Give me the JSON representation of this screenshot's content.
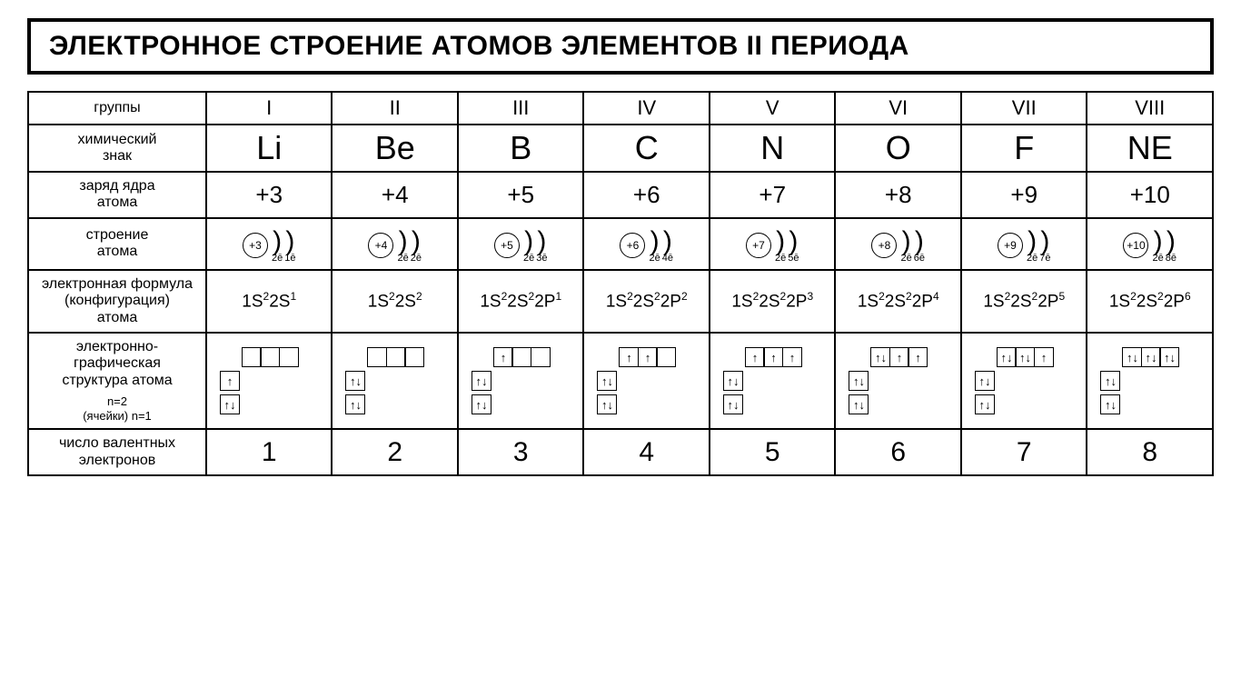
{
  "title": "ЭЛЕКТРОННОЕ СТРОЕНИЕ АТОМОВ ЭЛЕМЕНТОВ II ПЕРИОДА",
  "row_headers": {
    "groups": "группы",
    "symbol": "химический\nзнак",
    "charge": "заряд ядра\nатома",
    "structure": "строение\nатома",
    "config": "электронная формула\n(конфигурация)\nатома",
    "orbital": "электронно-\nграфическая\nструктура атома",
    "orbital_n": "n=2\n(ячейки) n=1",
    "valence": "число валентных\nэлектронов"
  },
  "groups": [
    "I",
    "II",
    "III",
    "IV",
    "V",
    "VI",
    "VII",
    "VIII"
  ],
  "elements": [
    {
      "symbol": "Li",
      "charge": "+3",
      "nucleus": "+3",
      "shells": [
        "2ē",
        "1ē"
      ],
      "config": [
        [
          "1S",
          "2"
        ],
        [
          "2S",
          "1"
        ]
      ],
      "orbitals": {
        "p": [
          "",
          "",
          ""
        ],
        "s2": [
          "↑"
        ],
        "s1": [
          "↑↓"
        ]
      },
      "valence": "1"
    },
    {
      "symbol": "Be",
      "charge": "+4",
      "nucleus": "+4",
      "shells": [
        "2ē",
        "2ē"
      ],
      "config": [
        [
          "1S",
          "2"
        ],
        [
          "2S",
          "2"
        ]
      ],
      "orbitals": {
        "p": [
          "",
          "",
          ""
        ],
        "s2": [
          "↑↓"
        ],
        "s1": [
          "↑↓"
        ]
      },
      "valence": "2"
    },
    {
      "symbol": "B",
      "charge": "+5",
      "nucleus": "+5",
      "shells": [
        "2ē",
        "3ē"
      ],
      "config": [
        [
          "1S",
          "2"
        ],
        [
          "2S",
          "2"
        ],
        [
          "2P",
          "1"
        ]
      ],
      "orbitals": {
        "p": [
          "↑",
          "",
          ""
        ],
        "s2": [
          "↑↓"
        ],
        "s1": [
          "↑↓"
        ]
      },
      "valence": "3"
    },
    {
      "symbol": "C",
      "charge": "+6",
      "nucleus": "+6",
      "shells": [
        "2ē",
        "4ē"
      ],
      "config": [
        [
          "1S",
          "2"
        ],
        [
          "2S",
          "2"
        ],
        [
          "2P",
          "2"
        ]
      ],
      "orbitals": {
        "p": [
          "↑",
          "↑",
          ""
        ],
        "s2": [
          "↑↓"
        ],
        "s1": [
          "↑↓"
        ]
      },
      "valence": "4"
    },
    {
      "symbol": "N",
      "charge": "+7",
      "nucleus": "+7",
      "shells": [
        "2ē",
        "5ē"
      ],
      "config": [
        [
          "1S",
          "2"
        ],
        [
          "2S",
          "2"
        ],
        [
          "2P",
          "3"
        ]
      ],
      "orbitals": {
        "p": [
          "↑",
          "↑",
          "↑"
        ],
        "s2": [
          "↑↓"
        ],
        "s1": [
          "↑↓"
        ]
      },
      "valence": "5"
    },
    {
      "symbol": "O",
      "charge": "+8",
      "nucleus": "+8",
      "shells": [
        "2ē",
        "6ē"
      ],
      "config": [
        [
          "1S",
          "2"
        ],
        [
          "2S",
          "2"
        ],
        [
          "2P",
          "4"
        ]
      ],
      "orbitals": {
        "p": [
          "↑↓",
          "↑",
          "↑"
        ],
        "s2": [
          "↑↓"
        ],
        "s1": [
          "↑↓"
        ]
      },
      "valence": "6"
    },
    {
      "symbol": "F",
      "charge": "+9",
      "nucleus": "+9",
      "shells": [
        "2ē",
        "7ē"
      ],
      "config": [
        [
          "1S",
          "2"
        ],
        [
          "2S",
          "2"
        ],
        [
          "2P",
          "5"
        ]
      ],
      "orbitals": {
        "p": [
          "↑↓",
          "↑↓",
          "↑"
        ],
        "s2": [
          "↑↓"
        ],
        "s1": [
          "↑↓"
        ]
      },
      "valence": "7"
    },
    {
      "symbol": "NE",
      "charge": "+10",
      "nucleus": "+10",
      "shells": [
        "2ē",
        "8ē"
      ],
      "config": [
        [
          "1S",
          "2"
        ],
        [
          "2S",
          "2"
        ],
        [
          "2P",
          "6"
        ]
      ],
      "orbitals": {
        "p": [
          "↑↓",
          "↑↓",
          "↑↓"
        ],
        "s2": [
          "↑↓"
        ],
        "s1": [
          "↑↓"
        ]
      },
      "valence": "8"
    }
  ],
  "colors": {
    "border": "#000000",
    "background": "#ffffff",
    "text": "#000000"
  }
}
